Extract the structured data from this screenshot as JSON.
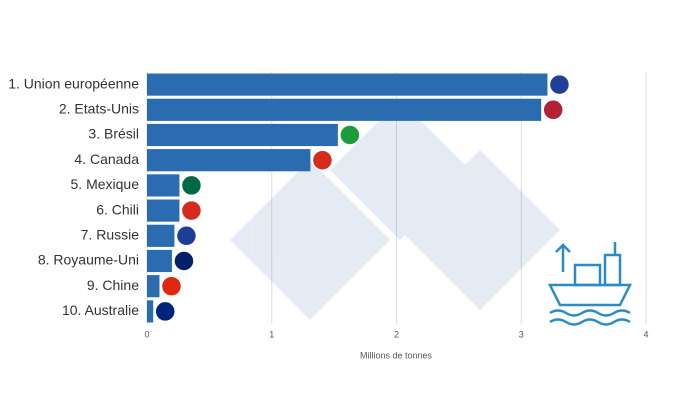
{
  "chart_data": {
    "type": "bar",
    "orientation": "horizontal",
    "xlabel": "Millions de tonnes",
    "categories": [
      "1. Union européenne",
      "2. Etats-Unis",
      "3. Brésil",
      "4. Canada",
      "5. Mexique",
      "6. Chili",
      "7. Russie",
      "8. Royaume-Uni",
      "9. Chine",
      "10. Australie"
    ],
    "values": [
      3.21,
      3.16,
      1.53,
      1.31,
      0.26,
      0.26,
      0.22,
      0.2,
      0.1,
      0.05
    ],
    "color": "#2b6cb0",
    "xlim": [
      0,
      4
    ],
    "xticks": [
      0,
      1,
      2,
      3,
      4
    ],
    "grid": true
  }
}
